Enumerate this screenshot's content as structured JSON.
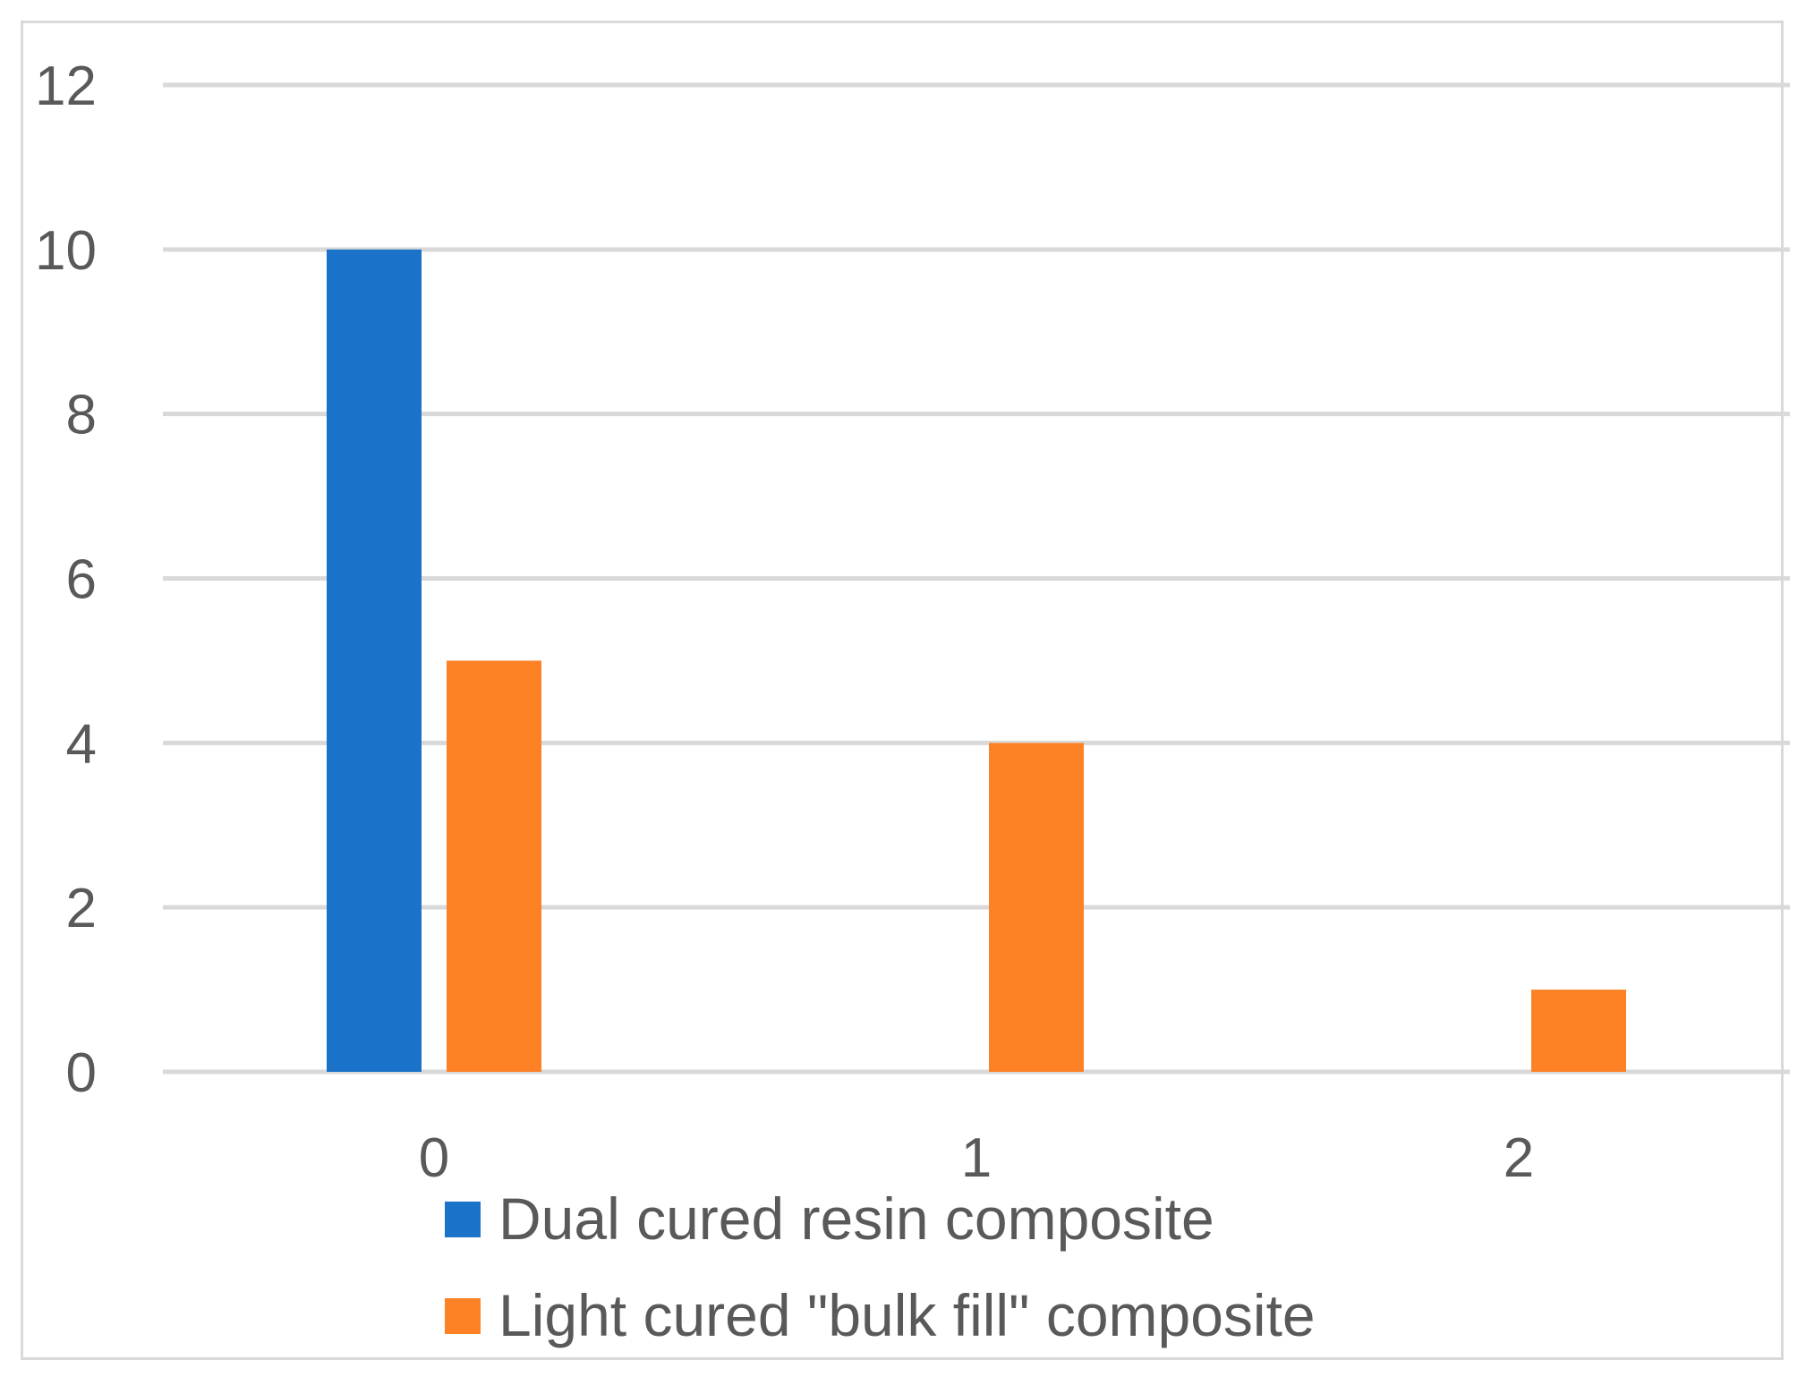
{
  "chart_data": {
    "type": "bar",
    "title": "",
    "xlabel": "",
    "ylabel": "",
    "categories": [
      "0",
      "1",
      "2"
    ],
    "series": [
      {
        "name": "Dual cured resin composite",
        "values": [
          10,
          0,
          0
        ],
        "color": "#1a73c8"
      },
      {
        "name": "Light cured \"bulk fill\" composite",
        "values": [
          5,
          4,
          1
        ],
        "color": "#fd8226"
      }
    ],
    "ylim": [
      0,
      12
    ],
    "yticks": [
      "0",
      "2",
      "4",
      "6",
      "8",
      "10",
      "12"
    ],
    "grid": true,
    "legend_position": "bottom"
  }
}
